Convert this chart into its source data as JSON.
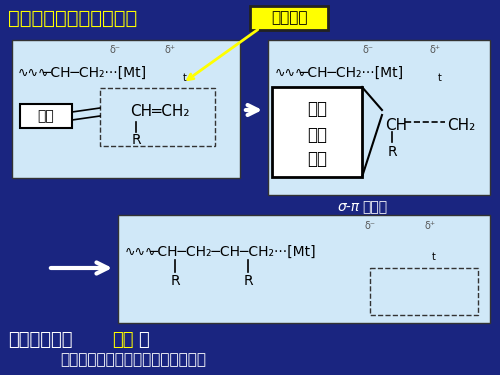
{
  "background_color": "#1a2580",
  "title_text": "链增长反应可表示如下：",
  "title_color": "#ffff00",
  "title_fontsize": 14,
  "box_color": "#d0e8f8",
  "label_guodu": "过渡金属",
  "label_konwei": "空位",
  "label_huanzt1": "环状",
  "label_huanzt2": "过渡",
  "label_huanzt3": "状态",
  "sigma_pi_text1": "σ-π",
  "sigma_pi_text2": "配合物",
  "bottom_prefix": "链增长过程的",
  "bottom_bold": "本质",
  "bottom_colon": "：",
  "bottom_text2": "单体对增长链端络合物的插入反应。",
  "bottom_color": "#ffffff",
  "bottom_bold_color": "#ffff00",
  "arrow_color": "#ffffff",
  "yellow_arrow_color": "#ffff00"
}
